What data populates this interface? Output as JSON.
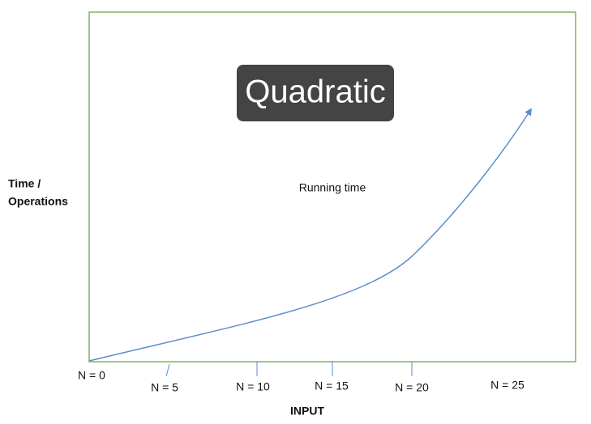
{
  "title": "Quadratic",
  "curve_label": "Running time",
  "y_axis_label": [
    "Time /",
    "Operations"
  ],
  "x_axis_label": "INPUT",
  "x_labels": [
    "N = 0",
    "N = 5",
    "N = 10",
    "N = 15",
    "N = 20",
    "N = 25"
  ]
}
